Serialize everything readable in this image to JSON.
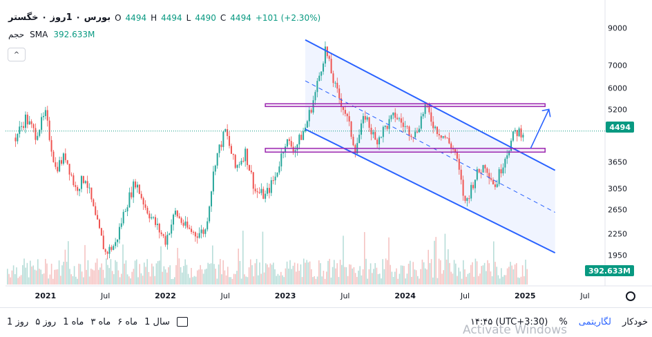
{
  "legend": {
    "symbol": "بورس ۰ 1روز ۰ خگستر",
    "open_label": "O",
    "open": "4494",
    "high_label": "H",
    "high": "4494",
    "low_label": "L",
    "low": "4490",
    "close_label": "C",
    "close": "4494",
    "change": "+101 (+2.30%)",
    "volume_name": "حجم",
    "sma_label": "SMA",
    "sma_value": "392.633M",
    "collapse": "^"
  },
  "badges": {
    "last_price": "4494",
    "volume": "392.633M"
  },
  "toolbar": {
    "ranges": [
      "1 روز",
      "۵ روز",
      "1 ماه",
      "۳ ماه",
      "۶ ماه",
      "1 سال"
    ],
    "tz": "۱۴:۴۵ (UTC+3:30)",
    "percent": "%",
    "log": "لگاریتمی",
    "auto": "خودکار"
  },
  "watermark": "Activate Windows",
  "colors": {
    "up": "#26a69a",
    "down": "#ef5350",
    "channel": "#2962ff",
    "zone": "#9c27b0",
    "vol_up": "#b7ddd8",
    "vol_down": "#f5c3c2"
  },
  "chart_data": {
    "type": "candlestick",
    "y_scale": "log",
    "ylim": [
      1600,
      9800
    ],
    "y_ticks": [
      9000,
      7000,
      6000,
      5200,
      4494,
      3650,
      3050,
      2650,
      2250,
      1950
    ],
    "x_ticks": [
      "2021",
      "Jul",
      "2022",
      "Jul",
      "2023",
      "Jul",
      "2024",
      "Jul",
      "2025",
      "Jul"
    ],
    "x_tick_dates": [
      "2021-01",
      "2021-07",
      "2022-01",
      "2022-07",
      "2023-01",
      "2023-07",
      "2024-01",
      "2024-07",
      "2025-01",
      "2025-07"
    ],
    "xlim": [
      "2020-09",
      "2025-09"
    ],
    "last_close": 4494,
    "series_path": [
      [
        "2020-10",
        4300
      ],
      [
        "2020-11",
        4900
      ],
      [
        "2020-12",
        4400
      ],
      [
        "2021-01",
        5000
      ],
      [
        "2021-02",
        3500
      ],
      [
        "2021-03",
        3800
      ],
      [
        "2021-04",
        3050
      ],
      [
        "2021-05",
        3300
      ],
      [
        "2021-06",
        2500
      ],
      [
        "2021-07",
        1980
      ],
      [
        "2021-08",
        2100
      ],
      [
        "2021-09",
        2700
      ],
      [
        "2021-10",
        3200
      ],
      [
        "2021-11",
        2700
      ],
      [
        "2021-12",
        2400
      ],
      [
        "2022-01",
        2150
      ],
      [
        "2022-02",
        2600
      ],
      [
        "2022-03",
        2350
      ],
      [
        "2022-04",
        2250
      ],
      [
        "2022-05",
        2300
      ],
      [
        "2022-06",
        3700
      ],
      [
        "2022-07",
        4500
      ],
      [
        "2022-08",
        3500
      ],
      [
        "2022-09",
        3900
      ],
      [
        "2022-10",
        3000
      ],
      [
        "2022-11",
        2900
      ],
      [
        "2022-12",
        3300
      ],
      [
        "2023-01",
        4200
      ],
      [
        "2023-02",
        4000
      ],
      [
        "2023-03",
        4600
      ],
      [
        "2023-04",
        5800
      ],
      [
        "2023-05",
        7800
      ],
      [
        "2023-06",
        6000
      ],
      [
        "2023-07",
        5100
      ],
      [
        "2023-08",
        4000
      ],
      [
        "2023-09",
        5000
      ],
      [
        "2023-10",
        4200
      ],
      [
        "2023-11",
        4600
      ],
      [
        "2023-12",
        5000
      ],
      [
        "2024-01",
        4600
      ],
      [
        "2024-02",
        4400
      ],
      [
        "2024-03",
        5300
      ],
      [
        "2024-04",
        4600
      ],
      [
        "2024-05",
        4300
      ],
      [
        "2024-06",
        3900
      ],
      [
        "2024-07",
        2750
      ],
      [
        "2024-08",
        3300
      ],
      [
        "2024-09",
        3600
      ],
      [
        "2024-10",
        3100
      ],
      [
        "2024-11",
        3800
      ],
      [
        "2024-12",
        4450
      ],
      [
        "2025-01",
        4494
      ]
    ],
    "channel": {
      "upper": [
        [
          "2023-03",
          8300
        ],
        [
          "2025-04",
          3450
        ]
      ],
      "middle": [
        [
          "2023-03",
          6300
        ],
        [
          "2025-04",
          2600
        ]
      ],
      "lower": [
        [
          "2023-03",
          4550
        ],
        [
          "2025-04",
          1980
        ]
      ]
    },
    "zones": [
      {
        "from": "2022-11",
        "to": "2025-03",
        "price_low": 5300,
        "price_high": 5400
      },
      {
        "from": "2022-11",
        "to": "2025-03",
        "price_low": 3900,
        "price_high": 4000
      }
    ],
    "arrow": {
      "from": [
        "2025-01",
        4000
      ],
      "to": [
        "2025-02",
        5200
      ]
    },
    "volume_sma": "392.633M"
  }
}
